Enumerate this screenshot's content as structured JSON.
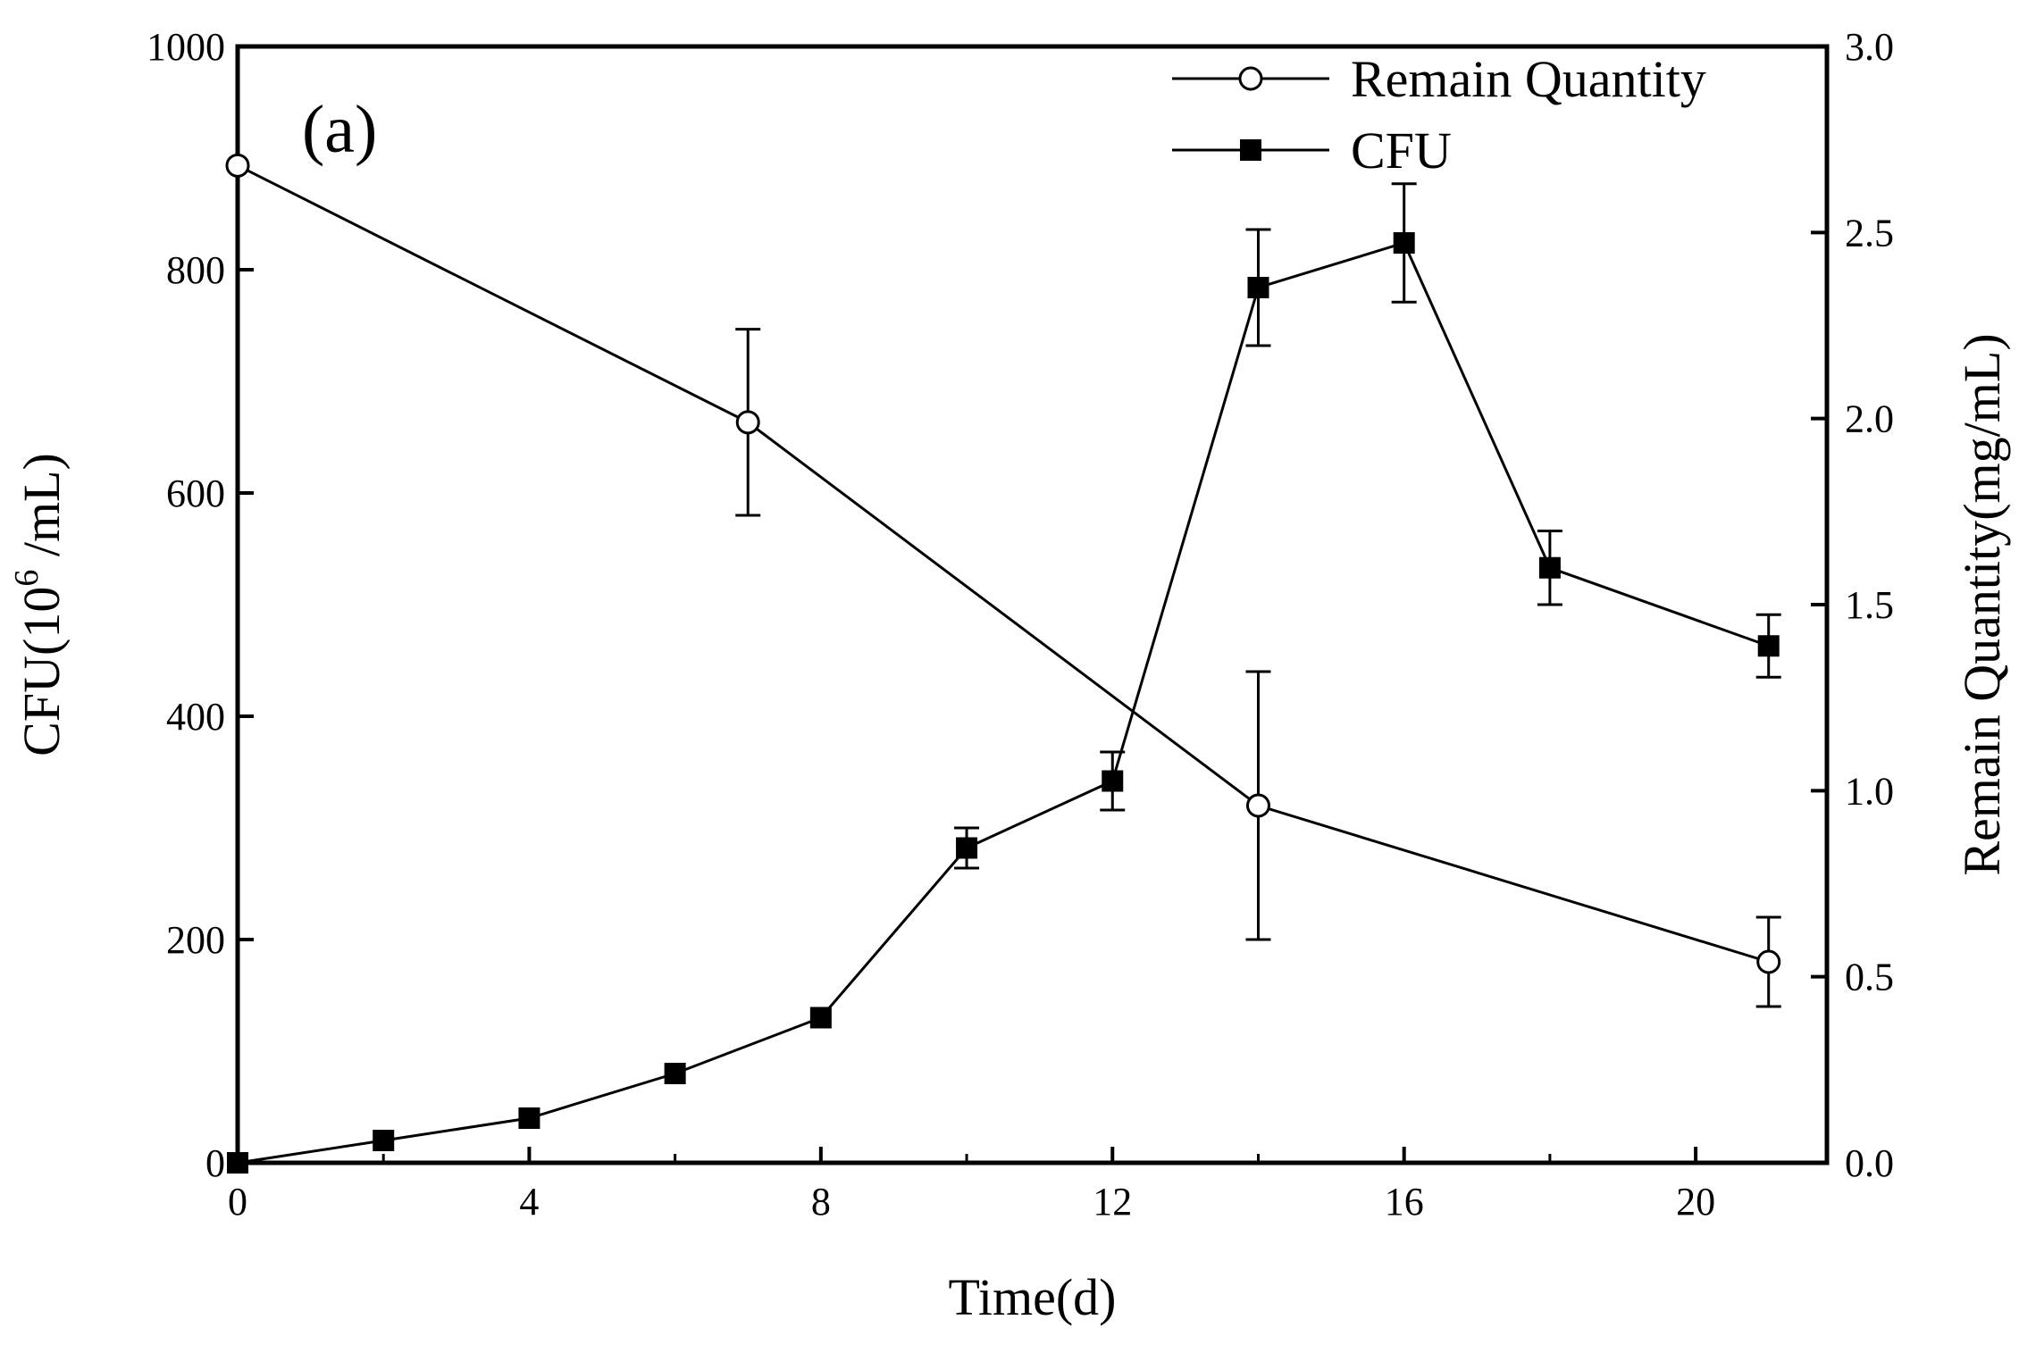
{
  "chart_data": {
    "type": "line",
    "panel_label": "(a)",
    "xlabel": "Time(d)",
    "ylabel_left": {
      "prefix": "CFU(10",
      "sup": "6",
      "suffix": " /mL)"
    },
    "ylabel_right": "Remain Quantity(mg/mL)",
    "xlim": [
      0,
      21.8
    ],
    "ylim_left": [
      0,
      1000
    ],
    "ylim_right": [
      0,
      3.0
    ],
    "x_ticks": [
      0,
      4,
      8,
      12,
      16,
      20
    ],
    "x_tick_labels": [
      "0",
      "4",
      "8",
      "12",
      "16",
      "20"
    ],
    "y_left_ticks": [
      0,
      200,
      400,
      600,
      800,
      1000
    ],
    "y_left_tick_labels": [
      "0",
      "200",
      "400",
      "600",
      "800",
      "1000"
    ],
    "y_right_ticks": [
      0,
      0.5,
      1.0,
      1.5,
      2.0,
      2.5,
      3.0
    ],
    "y_right_tick_labels": [
      "0.0",
      "0.5",
      "1.0",
      "1.5",
      "2.0",
      "2.5",
      "3.0"
    ],
    "legend_position": "top-right",
    "series": [
      {
        "name": "Remain Quantity",
        "axis": "right",
        "marker": "open-circle",
        "x": [
          0,
          7,
          14,
          21
        ],
        "y": [
          2.68,
          1.99,
          0.96,
          0.54
        ],
        "err": [
          0,
          0.25,
          0.36,
          0.12
        ]
      },
      {
        "name": "CFU",
        "axis": "left",
        "marker": "filled-square",
        "x": [
          0,
          2,
          4,
          6,
          8,
          10,
          12,
          14,
          16,
          18,
          21
        ],
        "y": [
          0,
          20,
          40,
          80,
          130,
          282,
          342,
          784,
          824,
          533,
          463
        ],
        "err": [
          0,
          0,
          0,
          0,
          0,
          18,
          26,
          52,
          53,
          33,
          28
        ]
      }
    ]
  }
}
